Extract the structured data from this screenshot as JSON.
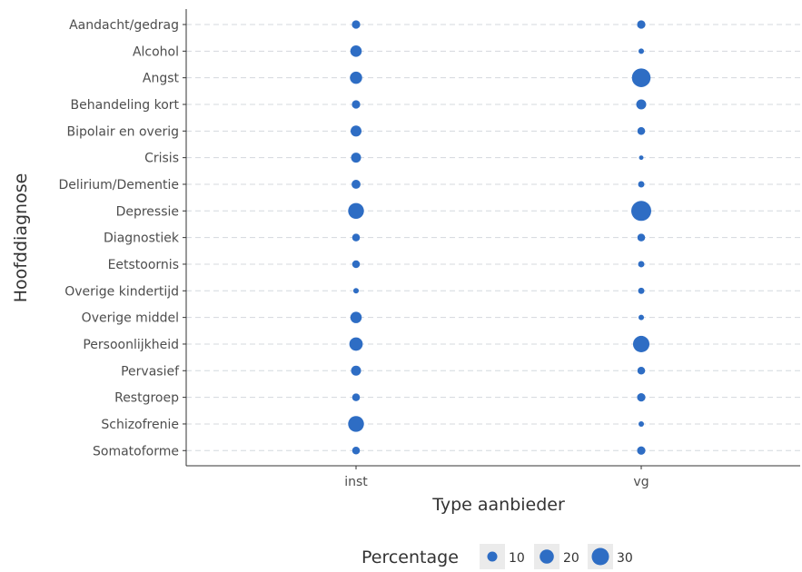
{
  "chart_data": {
    "type": "scatter",
    "xlabel": "Type aanbieder",
    "ylabel": "Hoofddiagnose",
    "x_categories": [
      "inst",
      "vg"
    ],
    "y_categories": [
      "Aandacht/gedrag",
      "Alcohol",
      "Angst",
      "Behandeling kort",
      "Bipolair en overig",
      "Crisis",
      "Delirium/Dementie",
      "Depressie",
      "Diagnostiek",
      "Eetstoornis",
      "Overige kindertijd",
      "Overige middel",
      "Persoonlijkheid",
      "Pervasief",
      "Restgroep",
      "Schizofrenie",
      "Somatoforme"
    ],
    "size_variable": "Percentage",
    "points": [
      {
        "x": "inst",
        "y": "Aandacht/gedrag",
        "size": 7
      },
      {
        "x": "inst",
        "y": "Alcohol",
        "size": 13
      },
      {
        "x": "inst",
        "y": "Angst",
        "size": 15
      },
      {
        "x": "inst",
        "y": "Behandeling kort",
        "size": 7
      },
      {
        "x": "inst",
        "y": "Bipolair en overig",
        "size": 12
      },
      {
        "x": "inst",
        "y": "Crisis",
        "size": 10
      },
      {
        "x": "inst",
        "y": "Delirium/Dementie",
        "size": 8
      },
      {
        "x": "inst",
        "y": "Depressie",
        "size": 25
      },
      {
        "x": "inst",
        "y": "Diagnostiek",
        "size": 6
      },
      {
        "x": "inst",
        "y": "Eetstoornis",
        "size": 6
      },
      {
        "x": "inst",
        "y": "Overige kindertijd",
        "size": 3
      },
      {
        "x": "inst",
        "y": "Overige middel",
        "size": 13
      },
      {
        "x": "inst",
        "y": "Persoonlijkheid",
        "size": 18
      },
      {
        "x": "inst",
        "y": "Pervasief",
        "size": 10
      },
      {
        "x": "inst",
        "y": "Restgroep",
        "size": 6
      },
      {
        "x": "inst",
        "y": "Schizofrenie",
        "size": 25
      },
      {
        "x": "inst",
        "y": "Somatoforme",
        "size": 6
      },
      {
        "x": "vg",
        "y": "Aandacht/gedrag",
        "size": 7
      },
      {
        "x": "vg",
        "y": "Alcohol",
        "size": 3
      },
      {
        "x": "vg",
        "y": "Angst",
        "size": 35
      },
      {
        "x": "vg",
        "y": "Behandeling kort",
        "size": 10
      },
      {
        "x": "vg",
        "y": "Bipolair en overig",
        "size": 6
      },
      {
        "x": "vg",
        "y": "Crisis",
        "size": 2
      },
      {
        "x": "vg",
        "y": "Delirium/Dementie",
        "size": 4
      },
      {
        "x": "vg",
        "y": "Depressie",
        "size": 40
      },
      {
        "x": "vg",
        "y": "Diagnostiek",
        "size": 6
      },
      {
        "x": "vg",
        "y": "Eetstoornis",
        "size": 4
      },
      {
        "x": "vg",
        "y": "Overige kindertijd",
        "size": 4
      },
      {
        "x": "vg",
        "y": "Overige middel",
        "size": 3
      },
      {
        "x": "vg",
        "y": "Persoonlijkheid",
        "size": 27
      },
      {
        "x": "vg",
        "y": "Pervasief",
        "size": 6
      },
      {
        "x": "vg",
        "y": "Restgroep",
        "size": 7
      },
      {
        "x": "vg",
        "y": "Schizofrenie",
        "size": 3
      },
      {
        "x": "vg",
        "y": "Somatoforme",
        "size": 7
      }
    ],
    "legend": {
      "title": "Percentage",
      "position": "bottom",
      "entries": [
        {
          "label": "10",
          "value": 10
        },
        {
          "label": "20",
          "value": 20
        },
        {
          "label": "30",
          "value": 30
        }
      ]
    },
    "grid": "horizontal dashed",
    "point_color": "#2e6dc4",
    "gridline_color": "#d4d8dd",
    "axis_color": "#333333"
  }
}
